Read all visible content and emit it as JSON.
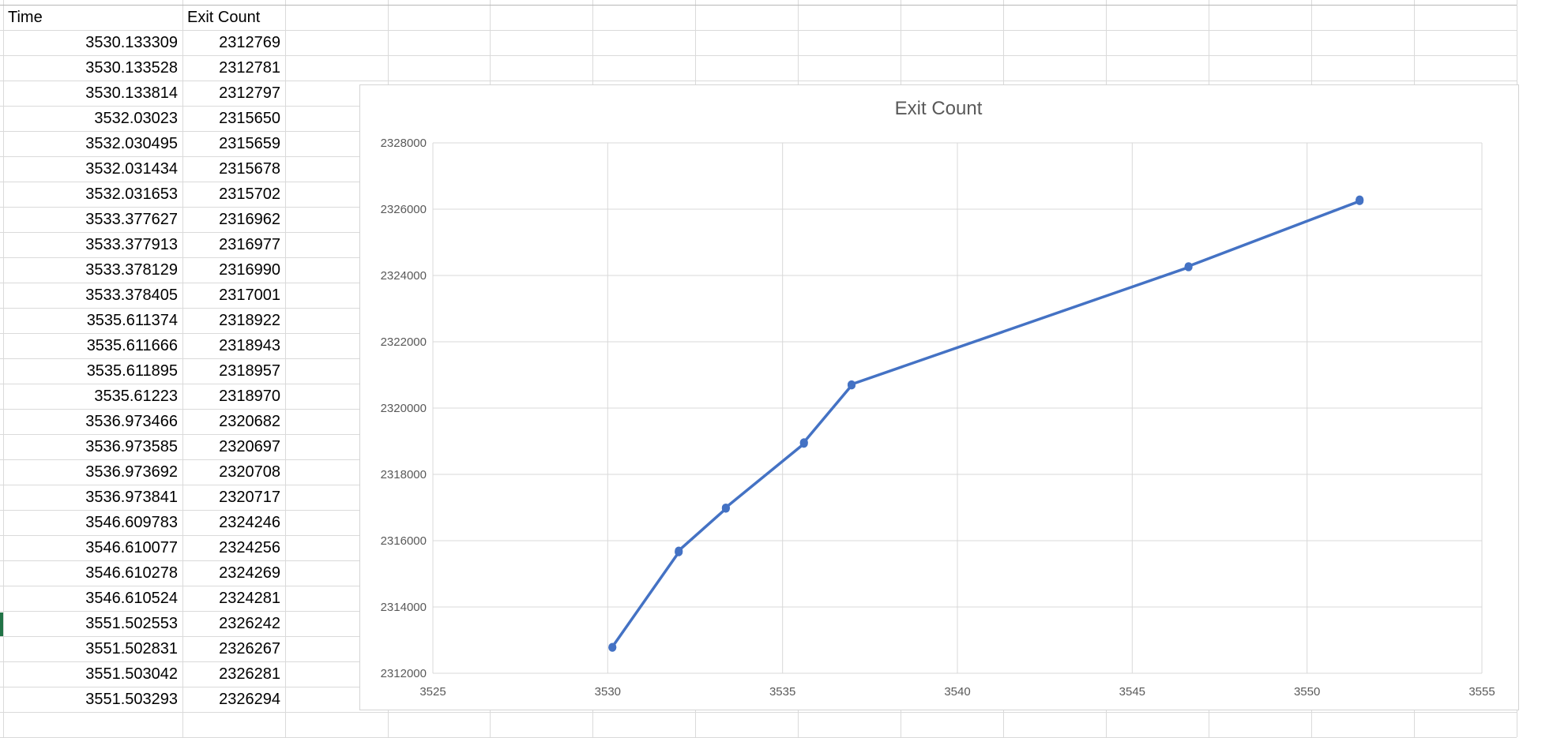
{
  "table": {
    "headers": [
      "Time",
      "Exit Count"
    ],
    "rows": [
      [
        "3530.133309",
        "2312769"
      ],
      [
        "3530.133528",
        "2312781"
      ],
      [
        "3530.133814",
        "2312797"
      ],
      [
        "3532.03023",
        "2315650"
      ],
      [
        "3532.030495",
        "2315659"
      ],
      [
        "3532.031434",
        "2315678"
      ],
      [
        "3532.031653",
        "2315702"
      ],
      [
        "3533.377627",
        "2316962"
      ],
      [
        "3533.377913",
        "2316977"
      ],
      [
        "3533.378129",
        "2316990"
      ],
      [
        "3533.378405",
        "2317001"
      ],
      [
        "3535.611374",
        "2318922"
      ],
      [
        "3535.611666",
        "2318943"
      ],
      [
        "3535.611895",
        "2318957"
      ],
      [
        "3535.61223",
        "2318970"
      ],
      [
        "3536.973466",
        "2320682"
      ],
      [
        "3536.973585",
        "2320697"
      ],
      [
        "3536.973692",
        "2320708"
      ],
      [
        "3536.973841",
        "2320717"
      ],
      [
        "3546.609783",
        "2324246"
      ],
      [
        "3546.610077",
        "2324256"
      ],
      [
        "3546.610278",
        "2324269"
      ],
      [
        "3546.610524",
        "2324281"
      ],
      [
        "3551.502553",
        "2326242"
      ],
      [
        "3551.502831",
        "2326267"
      ],
      [
        "3551.503042",
        "2326281"
      ],
      [
        "3551.503293",
        "2326294"
      ]
    ]
  },
  "chart_data": {
    "type": "scatter",
    "title": "Exit Count",
    "xlabel": "",
    "ylabel": "",
    "xlim": [
      3525,
      3555
    ],
    "ylim": [
      2312000,
      2328000
    ],
    "xticks": [
      3525,
      3530,
      3535,
      3540,
      3545,
      3550,
      3555
    ],
    "yticks": [
      2312000,
      2314000,
      2316000,
      2318000,
      2320000,
      2322000,
      2324000,
      2326000,
      2328000
    ],
    "grid": true,
    "legend": "none",
    "series": [
      {
        "lines": true,
        "markers": true,
        "color": "#4472C4",
        "x": [
          3530.133309,
          3530.133528,
          3530.133814,
          3532.03023,
          3532.030495,
          3532.031434,
          3532.031653,
          3533.377627,
          3533.377913,
          3533.378129,
          3533.378405,
          3535.611374,
          3535.611666,
          3535.611895,
          3535.61223,
          3536.973466,
          3536.973585,
          3536.973692,
          3536.973841,
          3546.609783,
          3546.610077,
          3546.610278,
          3546.610524,
          3551.502553,
          3551.502831,
          3551.503042,
          3551.503293
        ],
        "y": [
          2312769,
          2312781,
          2312797,
          2315650,
          2315659,
          2315678,
          2315702,
          2316962,
          2316977,
          2316990,
          2317001,
          2318922,
          2318943,
          2318957,
          2318970,
          2320682,
          2320697,
          2320708,
          2320717,
          2324246,
          2324256,
          2324269,
          2324281,
          2326242,
          2326267,
          2326281,
          2326294
        ]
      }
    ]
  },
  "colors": {
    "series": "#4472C4",
    "gridline": "#d9d9d9",
    "cell_grid": "#dadada",
    "selection": "#217346"
  }
}
